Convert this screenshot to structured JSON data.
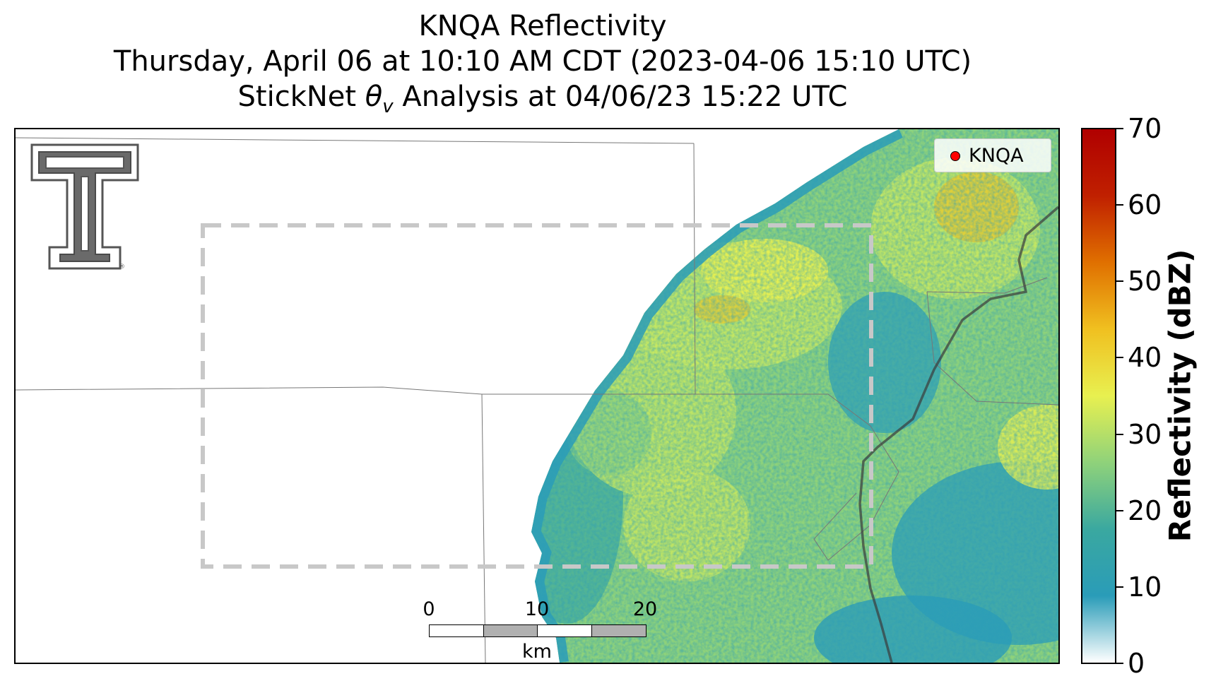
{
  "title": {
    "line1": "KNQA Reflectivity",
    "line2": "Thursday, April 06 at 10:10 AM CDT (2023-04-06 15:10 UTC)",
    "line3_prefix": "StickNet ",
    "line3_symbol": "θ",
    "line3_subscript": "v",
    "line3_suffix": " Analysis at 04/06/23 15:22 UTC"
  },
  "legend": {
    "label": "KNQA",
    "marker_color": "#ff0000"
  },
  "scalebar": {
    "ticks": [
      "0",
      "10",
      "20"
    ],
    "unit": "km"
  },
  "colorbar": {
    "label": "Reflectivity (dBZ)",
    "ticks": [
      "70",
      "60",
      "50",
      "40",
      "30",
      "20",
      "10",
      "0"
    ],
    "range": [
      0,
      70
    ],
    "colors": [
      "#ffffff",
      "#2a9cb8",
      "#3aa8a0",
      "#8fd27a",
      "#e8f050",
      "#f0c020",
      "#e07000",
      "#c02000",
      "#b00000"
    ]
  },
  "map": {
    "analysis_box_color": "#c8c8c8",
    "echo_colors": [
      "#2a9cb8",
      "#3aa8a0",
      "#8fd27a",
      "#c8e860",
      "#e8f050",
      "#f0c020"
    ]
  },
  "logo": {
    "name": "Texas Tech Double T"
  }
}
